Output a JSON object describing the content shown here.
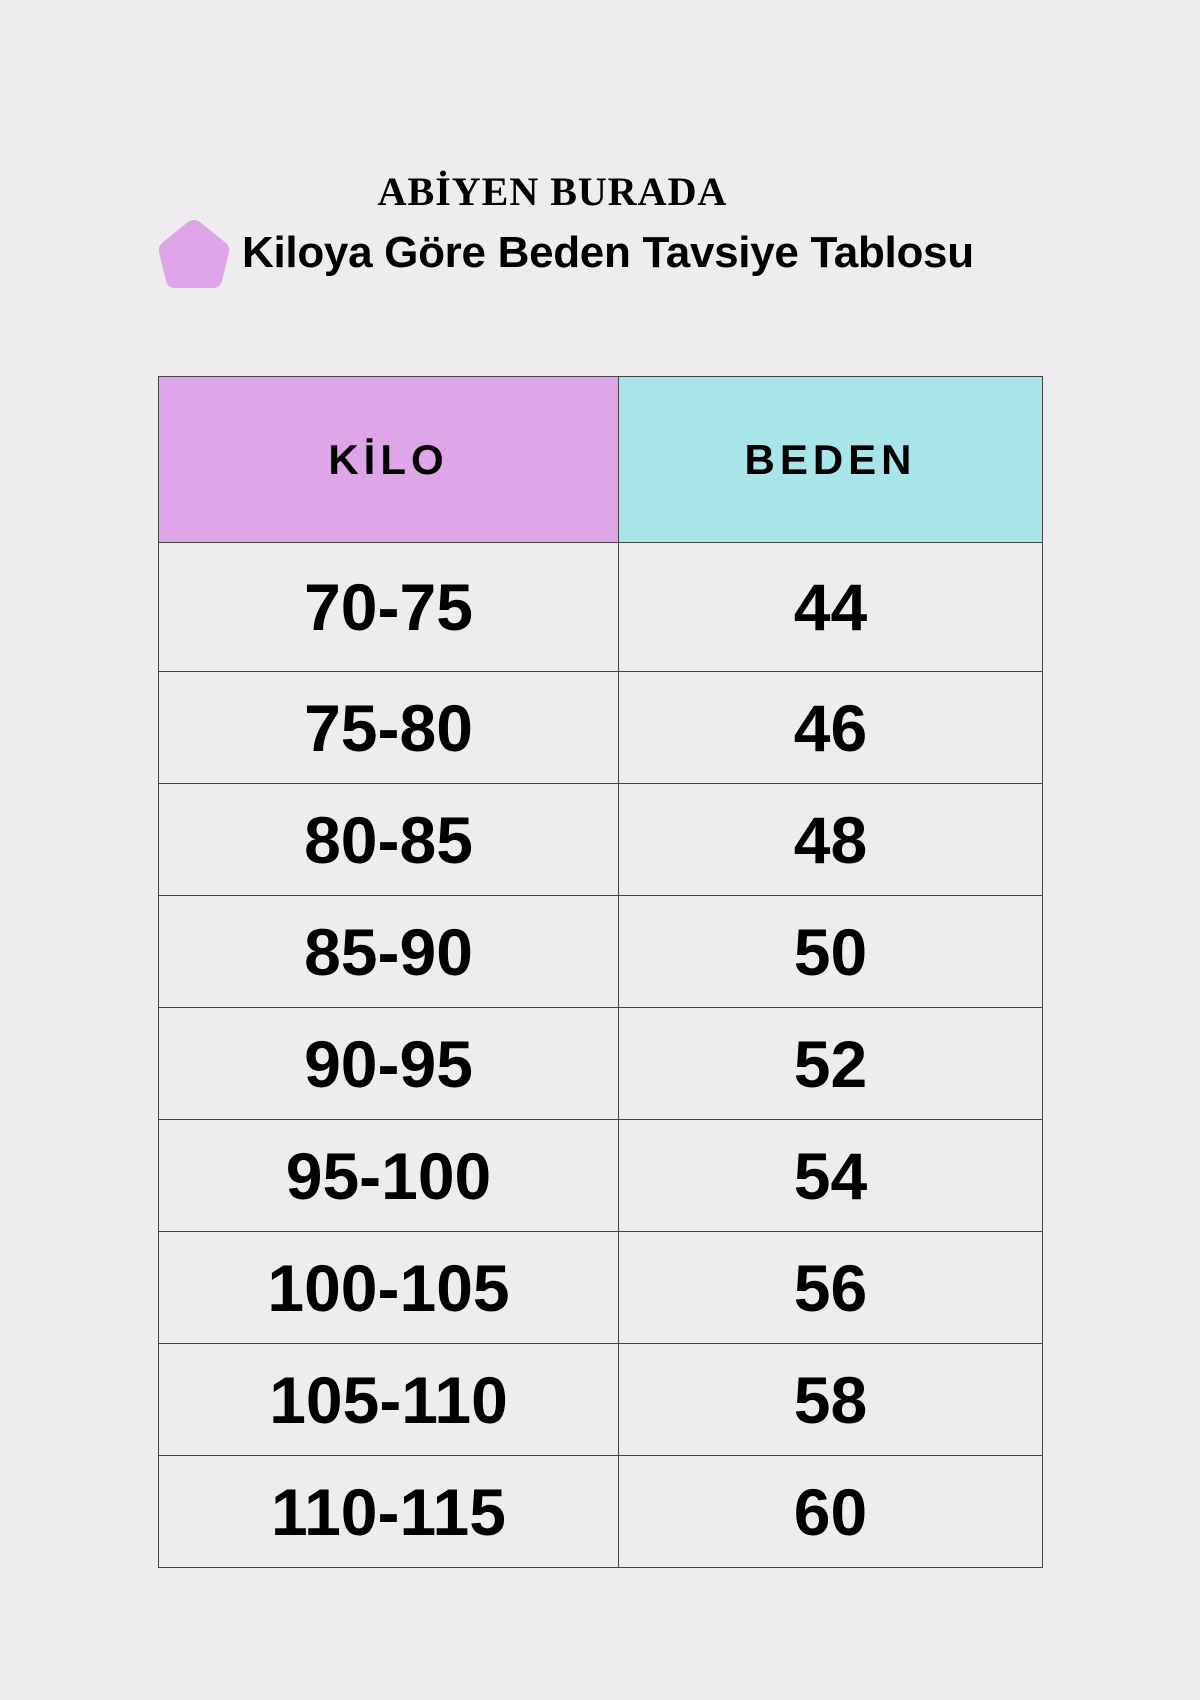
{
  "brand": "ABİYEN BURADA",
  "subtitle": "Kiloya Göre Beden Tavsiye Tablosu",
  "icon": "pentagon-icon",
  "colors": {
    "kilo_header": "#dea5e8",
    "beden_header": "#a8e5e8",
    "pentagon": "#dea5e8",
    "background": "#eeecee"
  },
  "table": {
    "headers": [
      "KİLO",
      "BEDEN"
    ],
    "rows": [
      [
        "70-75",
        "44"
      ],
      [
        "75-80",
        "46"
      ],
      [
        "80-85",
        "48"
      ],
      [
        "85-90",
        "50"
      ],
      [
        "90-95",
        "52"
      ],
      [
        "95-100",
        "54"
      ],
      [
        "100-105",
        "56"
      ],
      [
        "105-110",
        "58"
      ],
      [
        "110-115",
        "60"
      ]
    ]
  }
}
